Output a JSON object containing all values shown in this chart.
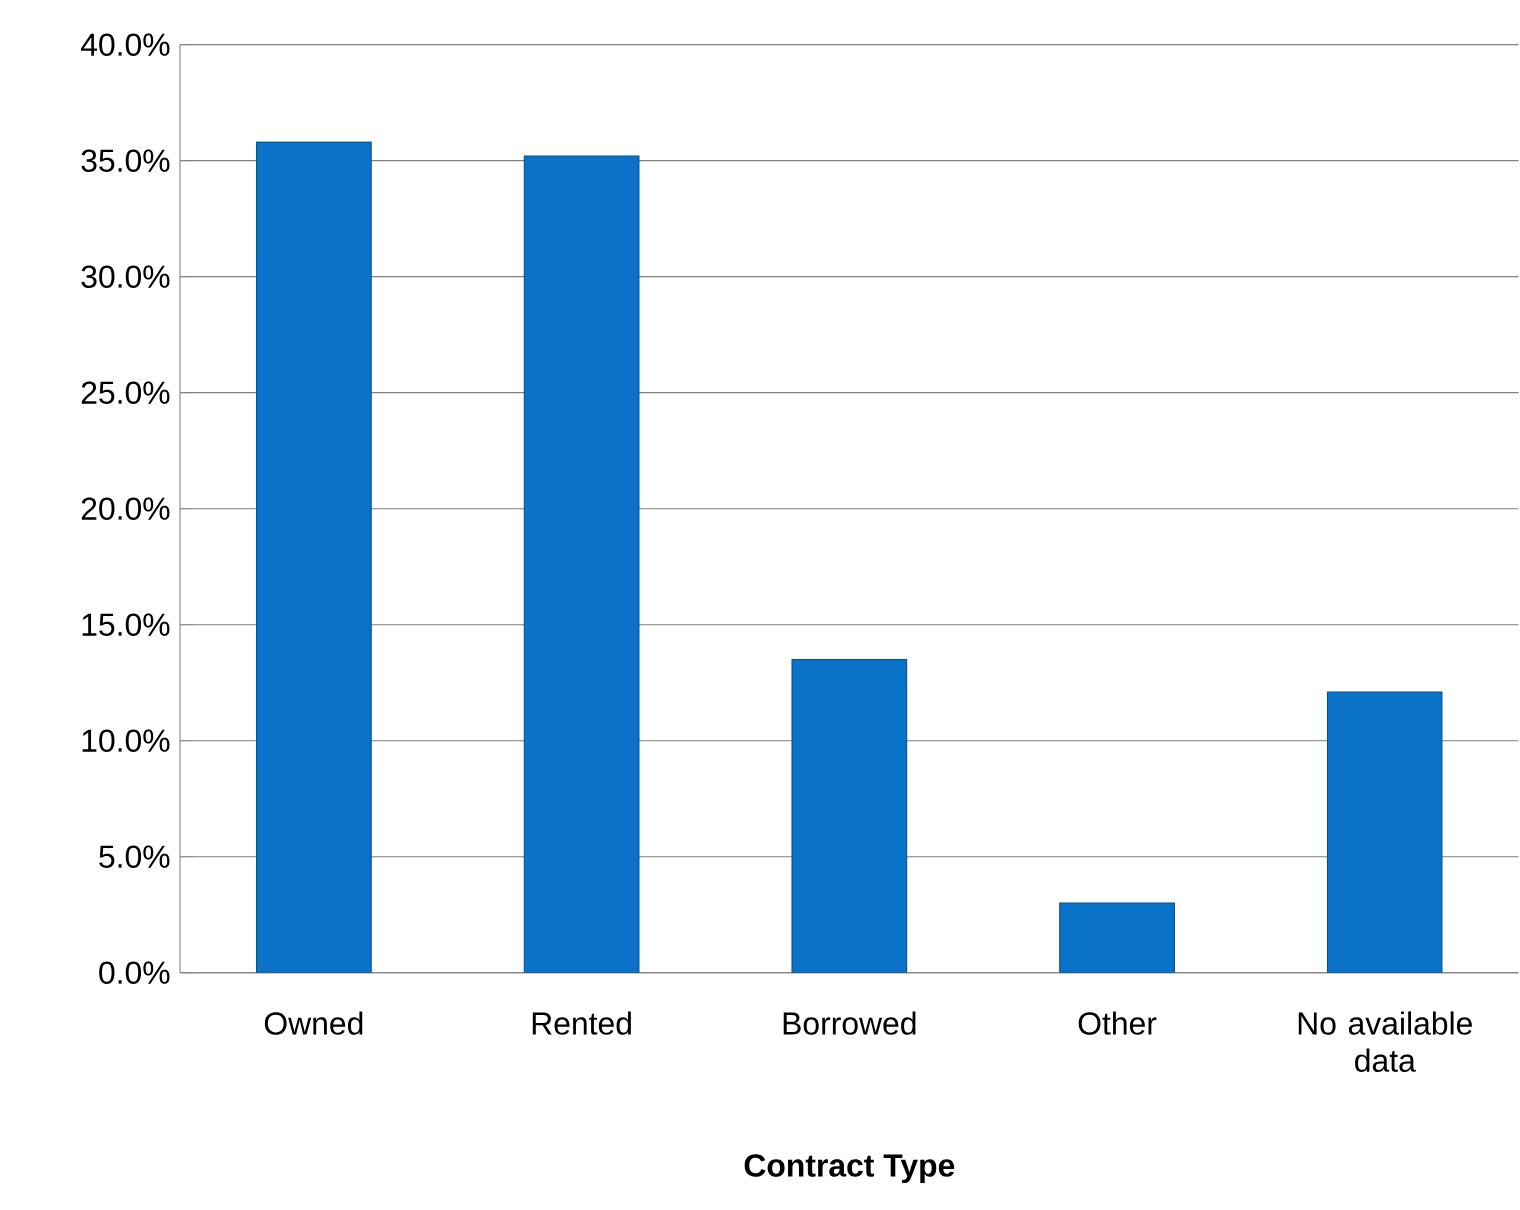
{
  "chart_data": {
    "type": "bar",
    "xlabel": "**Contract Type**",
    "categories": [
      "Owned",
      "Rented",
      "Borrowed",
      "Other",
      "No available data"
    ],
    "values": [
      35.8,
      35.2,
      13.5,
      3.0,
      12.1
    ],
    "color": "#0a72c8",
    "ylim": [
      0,
      40
    ],
    "yticks": [
      {
        "value": 0,
        "label": "0.0%"
      },
      {
        "value": 5,
        "label": "5.0%"
      },
      {
        "value": 10,
        "label": "10.0%"
      },
      {
        "value": 15,
        "label": "15.0%"
      },
      {
        "value": 20,
        "label": "20.0%"
      },
      {
        "value": 25,
        "label": "25.0%"
      },
      {
        "value": 30,
        "label": "30.0%"
      },
      {
        "value": 35,
        "label": "35.0%"
      },
      {
        "value": 40,
        "label": "40.0%"
      }
    ],
    "grid": "y"
  }
}
